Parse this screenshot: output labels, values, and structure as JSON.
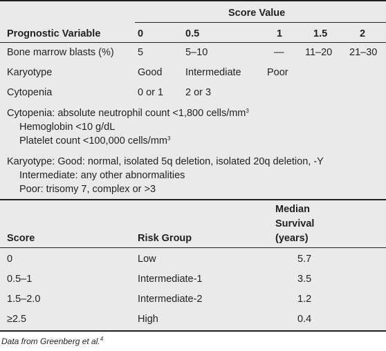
{
  "table1": {
    "score_value_header": "Score Value",
    "columns": [
      "Prognostic Variable",
      "0",
      "0.5",
      "1",
      "1.5",
      "2"
    ],
    "rows": [
      [
        "Bone marrow blasts (%)",
        "5",
        "5–10",
        "—",
        "11–20",
        "21–30"
      ],
      [
        "Karyotype",
        "Good",
        "Intermediate",
        "Poor",
        "",
        ""
      ],
      [
        "Cytopenia",
        "0 or 1",
        "2 or 3",
        "",
        "",
        ""
      ]
    ],
    "notes": {
      "cytopenia_line1": "Cytopenia: absolute neutrophil count <1,800 cells/mm",
      "cytopenia_line1_sup": "3",
      "cytopenia_line2": "Hemoglobin <10 g/dL",
      "cytopenia_line3": "Platelet count <100,000 cells/mm",
      "cytopenia_line3_sup": "3",
      "karyotype_line1": "Karyotype: Good: normal, isolated 5q deletion, isolated 20q deletion, -Y",
      "karyotype_line2": "Intermediate: any other abnormalities",
      "karyotype_line3": "Poor: trisomy 7, complex or >3"
    }
  },
  "table2": {
    "columns": [
      "Score",
      "Risk Group",
      "Median",
      "Survival",
      "(years)"
    ],
    "rows": [
      [
        "0",
        "Low",
        "5.7"
      ],
      [
        "0.5–1",
        "Intermediate-1",
        "3.5"
      ],
      [
        "1.5–2.0",
        "Intermediate-2",
        "1.2"
      ],
      [
        "≥2.5",
        "High",
        "0.4"
      ]
    ]
  },
  "footnote": {
    "text": "Data from Greenberg et al.",
    "sup": "4"
  }
}
